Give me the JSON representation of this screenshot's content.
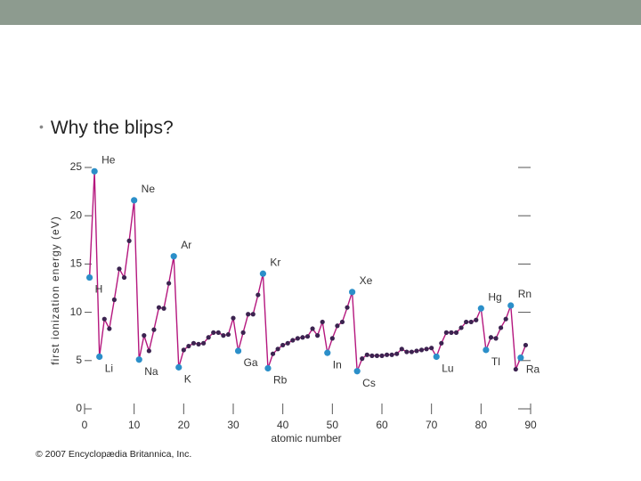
{
  "slide": {
    "bullet": "Why the blips?",
    "credit": "© 2007 Encyclopædia Britannica, Inc."
  },
  "chart_data": {
    "type": "line",
    "x_label": "atomic number",
    "y_label": "first ionization energy (eV)",
    "x": [
      1,
      2,
      3,
      4,
      5,
      6,
      7,
      8,
      9,
      10,
      11,
      12,
      13,
      14,
      15,
      16,
      17,
      18,
      19,
      20,
      21,
      22,
      23,
      24,
      25,
      26,
      27,
      28,
      29,
      30,
      31,
      32,
      33,
      34,
      35,
      36,
      37,
      38,
      39,
      40,
      41,
      42,
      43,
      44,
      45,
      46,
      47,
      48,
      49,
      50,
      51,
      52,
      53,
      54,
      55,
      56,
      57,
      58,
      59,
      60,
      61,
      62,
      63,
      64,
      65,
      66,
      67,
      68,
      69,
      70,
      71,
      72,
      73,
      74,
      75,
      76,
      77,
      78,
      79,
      80,
      81,
      82,
      83,
      84,
      85,
      86,
      87,
      88,
      89
    ],
    "values": [
      13.6,
      24.6,
      5.4,
      9.3,
      8.3,
      11.3,
      14.5,
      13.6,
      17.4,
      21.6,
      5.1,
      7.6,
      6.0,
      8.2,
      10.5,
      10.4,
      13.0,
      15.8,
      4.3,
      6.1,
      6.5,
      6.8,
      6.7,
      6.8,
      7.4,
      7.9,
      7.9,
      7.6,
      7.7,
      9.4,
      6.0,
      7.9,
      9.8,
      9.8,
      11.8,
      14.0,
      4.2,
      5.7,
      6.2,
      6.6,
      6.8,
      7.1,
      7.3,
      7.4,
      7.5,
      8.3,
      7.6,
      9.0,
      5.8,
      7.3,
      8.6,
      9.0,
      10.5,
      12.1,
      3.9,
      5.2,
      5.6,
      5.5,
      5.5,
      5.5,
      5.6,
      5.6,
      5.7,
      6.2,
      5.9,
      5.9,
      6.0,
      6.1,
      6.2,
      6.3,
      5.4,
      6.8,
      7.9,
      7.9,
      7.9,
      8.4,
      9.0,
      9.0,
      9.2,
      10.4,
      6.1,
      7.4,
      7.3,
      8.4,
      9.3,
      10.7,
      4.1,
      5.3,
      6.6
    ],
    "line_color": "#b5177e",
    "point_color": "#3c2350",
    "highlight_color": "#2b8fc9",
    "annotations": [
      {
        "text": "H",
        "x": 1
      },
      {
        "text": "He",
        "x": 2
      },
      {
        "text": "Li",
        "x": 3
      },
      {
        "text": "Ne",
        "x": 10
      },
      {
        "text": "Na",
        "x": 11
      },
      {
        "text": "Ar",
        "x": 18
      },
      {
        "text": "K",
        "x": 19
      },
      {
        "text": "Ga",
        "x": 31
      },
      {
        "text": "Kr",
        "x": 36
      },
      {
        "text": "Rb",
        "x": 37
      },
      {
        "text": "In",
        "x": 49
      },
      {
        "text": "Xe",
        "x": 54
      },
      {
        "text": "Cs",
        "x": 55
      },
      {
        "text": "Lu",
        "x": 71
      },
      {
        "text": "Hg",
        "x": 80
      },
      {
        "text": "Tl",
        "x": 81
      },
      {
        "text": "Rn",
        "x": 86
      },
      {
        "text": "Ra",
        "x": 88
      }
    ],
    "xlim": [
      0,
      90
    ],
    "xticks": [
      0,
      10,
      20,
      30,
      40,
      50,
      60,
      70,
      80,
      90
    ],
    "ylim": [
      0,
      25
    ],
    "yticks": [
      0,
      5,
      10,
      15,
      20,
      25
    ]
  }
}
